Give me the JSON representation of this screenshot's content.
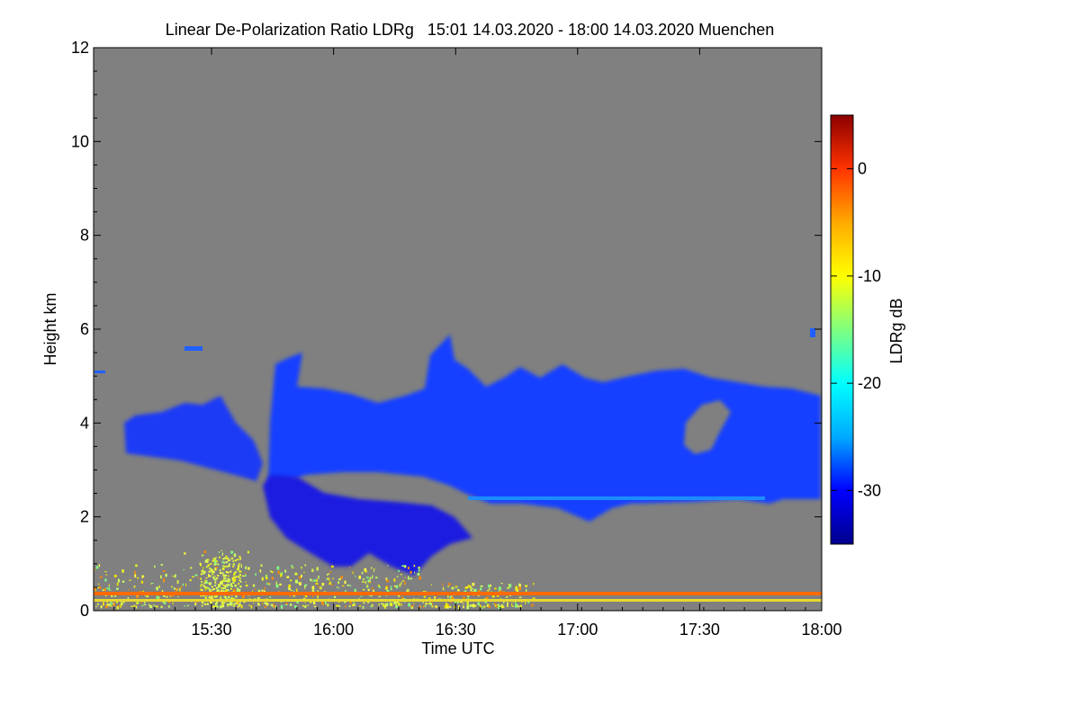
{
  "chart_data": {
    "type": "heatmap",
    "title": "Linear De-Polarization Ratio LDRg   15:01 14.03.2020 - 18:00 14.03.2020 Muenchen",
    "xlabel": "Time UTC",
    "ylabel": "Height km",
    "xlim": [
      "15:01",
      "18:00"
    ],
    "ylim": [
      0,
      12
    ],
    "x_ticks": [
      {
        "label": "15:30",
        "value_min": 899
      },
      {
        "label": "16:00",
        "value_min": 929
      },
      {
        "label": "16:30",
        "value_min": 959
      },
      {
        "label": "17:00",
        "value_min": 989
      },
      {
        "label": "17:30",
        "value_min": 1019
      },
      {
        "label": "18:00",
        "value_min": 1049
      }
    ],
    "x_range_min": [
      870,
      1049
    ],
    "y_ticks": [
      0,
      2,
      4,
      6,
      8,
      10,
      12
    ],
    "colorbar": {
      "label": "LDRg dB",
      "range": [
        -35,
        5
      ],
      "ticks": [
        0,
        -10,
        -20,
        -30
      ],
      "colormap": [
        "#00008b",
        "#0000ff",
        "#00aaff",
        "#00ffff",
        "#7fff7f",
        "#ffff00",
        "#ffaa00",
        "#ff3300",
        "#8b0000"
      ]
    },
    "background_color": "#808080",
    "features": [
      {
        "name": "cloud layer",
        "time_start": "15:07",
        "time_end": "18:00",
        "height_base_km": 2.3,
        "height_top_km": 5.8,
        "ldr_db": -30
      },
      {
        "name": "lower cloud",
        "time_start": "15:45",
        "time_end": "16:40",
        "height_base_km": 0.7,
        "height_top_km": 2.5,
        "ldr_db": -33
      },
      {
        "name": "surface clutter / aerosol",
        "time_start": "15:01",
        "time_end": "16:50",
        "height_base_km": 0,
        "height_top_km": 1.3,
        "ldr_db": -8
      },
      {
        "name": "near-ground band",
        "time_start": "15:01",
        "time_end": "18:00",
        "height_base_km": 0.2,
        "height_top_km": 0.3,
        "ldr_db": -3
      }
    ]
  }
}
